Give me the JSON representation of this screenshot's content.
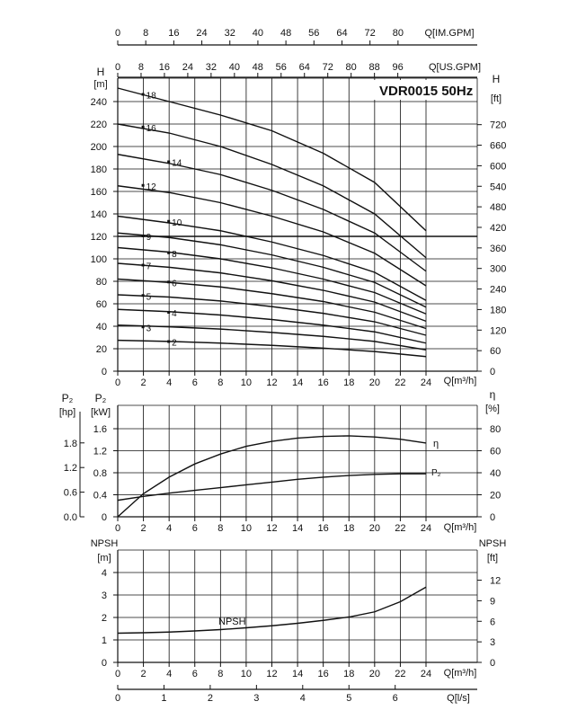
{
  "title": "VDR0015 50Hz",
  "title_color": "#b5602a",
  "top_axes": {
    "im_gpm": {
      "label": "Q[IM.GPM]",
      "ticks": [
        "0",
        "8",
        "16",
        "24",
        "32",
        "40",
        "48",
        "56",
        "64",
        "72",
        "80"
      ]
    },
    "us_gpm": {
      "label": "Q[US.GPM]",
      "ticks": [
        "0",
        "8",
        "16",
        "24",
        "32",
        "40",
        "48",
        "56",
        "64",
        "72",
        "80",
        "88",
        "96"
      ]
    }
  },
  "bottom_axis": {
    "label": "Q[l/s]",
    "ticks": [
      "0",
      "1",
      "2",
      "3",
      "4",
      "5",
      "6"
    ]
  },
  "chart_data": [
    {
      "name": "head",
      "type": "line",
      "xlabel": "Q[m³/h]",
      "xlim": [
        0,
        24
      ],
      "x_ticks": [
        "0",
        "2",
        "4",
        "6",
        "8",
        "10",
        "12",
        "14",
        "16",
        "18",
        "20",
        "22",
        "24"
      ],
      "ylabel_left_symbol": "H",
      "ylabel_left_unit": "[m]",
      "ylim": [
        0,
        250
      ],
      "y_ticks": [
        "0",
        "20",
        "40",
        "60",
        "80",
        "100",
        "120",
        "140",
        "160",
        "180",
        "200",
        "220",
        "240"
      ],
      "ylabel_right_symbol": "H",
      "ylabel_right_unit": "[ft]",
      "y_ticks_right": [
        "0",
        "60",
        "120",
        "180",
        "240",
        "300",
        "360",
        "420",
        "480",
        "540",
        "600",
        "660",
        "720"
      ],
      "series": [
        {
          "name": "2",
          "x": [
            0,
            4,
            8,
            12,
            16,
            20,
            24
          ],
          "y": [
            27.5,
            26.5,
            25,
            23,
            20.5,
            17.5,
            13
          ]
        },
        {
          "name": "3",
          "x": [
            0,
            4,
            8,
            12,
            16,
            20,
            24
          ],
          "y": [
            41,
            39.5,
            37.5,
            34.5,
            31,
            26.5,
            19
          ]
        },
        {
          "name": "4",
          "x": [
            0,
            4,
            8,
            12,
            16,
            20,
            24
          ],
          "y": [
            55,
            53,
            50,
            46,
            41,
            35,
            25
          ]
        },
        {
          "name": "5",
          "x": [
            0,
            4,
            8,
            12,
            16,
            20,
            24
          ],
          "y": [
            68,
            66,
            62.5,
            57.5,
            51.5,
            44,
            32
          ]
        },
        {
          "name": "6",
          "x": [
            0,
            4,
            8,
            12,
            16,
            20,
            24
          ],
          "y": [
            82,
            79,
            75,
            69,
            62,
            52.5,
            38
          ]
        },
        {
          "name": "7",
          "x": [
            0,
            4,
            8,
            12,
            16,
            20,
            24
          ],
          "y": [
            96,
            92.5,
            87.5,
            80.5,
            72,
            61.5,
            44.5
          ]
        },
        {
          "name": "8",
          "x": [
            0,
            4,
            8,
            12,
            16,
            20,
            24
          ],
          "y": [
            110,
            106,
            100,
            92,
            82,
            70,
            51
          ]
        },
        {
          "name": "9",
          "x": [
            0,
            4,
            8,
            12,
            16,
            20,
            24
          ],
          "y": [
            123,
            119,
            112.5,
            103.5,
            92.5,
            79,
            57
          ]
        },
        {
          "name": "10",
          "x": [
            0,
            4,
            8,
            12,
            16,
            20,
            24
          ],
          "y": [
            138,
            132,
            125,
            115,
            103,
            88,
            63
          ]
        },
        {
          "name": "12",
          "x": [
            0,
            4,
            8,
            12,
            16,
            20,
            24
          ],
          "y": [
            165,
            159,
            150,
            138,
            124,
            105,
            76
          ]
        },
        {
          "name": "14",
          "x": [
            0,
            4,
            8,
            12,
            16,
            20,
            24
          ],
          "y": [
            193,
            185,
            175,
            161,
            144,
            123,
            89
          ]
        },
        {
          "name": "16",
          "x": [
            0,
            4,
            8,
            12,
            16,
            20,
            24
          ],
          "y": [
            220,
            212,
            200,
            184,
            165,
            140,
            101
          ]
        },
        {
          "name": "18",
          "x": [
            0,
            4,
            8,
            12,
            16,
            20,
            24
          ],
          "y": [
            252,
            240,
            228,
            214,
            194,
            168,
            125
          ]
        }
      ],
      "annotations": [
        {
          "text": "18",
          "x": 2,
          "y": 246
        },
        {
          "text": "16",
          "x": 2,
          "y": 217
        },
        {
          "text": "14",
          "x": 4,
          "y": 186
        },
        {
          "text": "12",
          "x": 2,
          "y": 165
        },
        {
          "text": "10",
          "x": 4,
          "y": 133
        },
        {
          "text": "9",
          "x": 2,
          "y": 120
        },
        {
          "text": "8",
          "x": 4,
          "y": 105
        },
        {
          "text": "7",
          "x": 2,
          "y": 94
        },
        {
          "text": "6",
          "x": 4,
          "y": 79
        },
        {
          "text": "5",
          "x": 2,
          "y": 67
        },
        {
          "text": "4",
          "x": 4,
          "y": 52
        },
        {
          "text": "3",
          "x": 2,
          "y": 39
        },
        {
          "text": "2",
          "x": 4,
          "y": 26
        }
      ],
      "grid": true
    },
    {
      "name": "power-efficiency",
      "type": "line",
      "xlabel": "Q[m³/h]",
      "xlim": [
        0,
        24
      ],
      "x_ticks": [
        "0",
        "2",
        "4",
        "6",
        "8",
        "10",
        "12",
        "14",
        "16",
        "18",
        "20",
        "22",
        "24"
      ],
      "ylabel_hp_symbol": "P₂",
      "ylabel_hp_unit": "[hp]",
      "y_ticks_hp": [
        "0.0",
        "0.6",
        "1.2",
        "1.8"
      ],
      "ylabel_kw_symbol": "P₂",
      "ylabel_kw_unit": "[kW]",
      "ylim": [
        0,
        1.8
      ],
      "y_ticks": [
        "0",
        "0.4",
        "0.8",
        "1.2",
        "1.6"
      ],
      "ylabel_right_symbol": "η",
      "ylabel_right_unit": "[%]",
      "y_ticks_right": [
        "0",
        "20",
        "40",
        "60",
        "80"
      ],
      "series": [
        {
          "name": "η",
          "axis": "right",
          "x": [
            0,
            2,
            4,
            6,
            8,
            10,
            12,
            14,
            16,
            18,
            20,
            22,
            24
          ],
          "y": [
            0,
            21,
            36,
            48,
            57,
            64,
            68.5,
            71.5,
            73,
            73.5,
            72.5,
            70.5,
            67
          ]
        },
        {
          "name": "P₂",
          "axis": "kw",
          "x": [
            0,
            2,
            4,
            6,
            8,
            10,
            12,
            14,
            16,
            18,
            20,
            22,
            24
          ],
          "y": [
            0.3,
            0.37,
            0.43,
            0.48,
            0.53,
            0.58,
            0.63,
            0.68,
            0.72,
            0.75,
            0.77,
            0.78,
            0.78
          ]
        }
      ],
      "series_labels": [
        "η",
        "P₂"
      ],
      "grid": true
    },
    {
      "name": "npsh",
      "type": "line",
      "xlabel": "Q[m³/h]",
      "xlim": [
        0,
        24
      ],
      "x_ticks": [
        "0",
        "2",
        "4",
        "6",
        "8",
        "10",
        "12",
        "14",
        "16",
        "18",
        "20",
        "22",
        "24"
      ],
      "ylabel_left_symbol": "NPSH",
      "ylabel_left_unit": "[m]",
      "ylim": [
        0,
        4.5
      ],
      "y_ticks": [
        "0",
        "1",
        "2",
        "3",
        "4"
      ],
      "ylabel_right_symbol": "NPSH",
      "ylabel_right_unit": "[ft]",
      "y_ticks_right": [
        "0",
        "3",
        "6",
        "9",
        "12"
      ],
      "series": [
        {
          "name": "NPSH",
          "x": [
            0,
            2,
            4,
            6,
            8,
            10,
            12,
            14,
            16,
            18,
            20,
            22,
            24
          ],
          "y": [
            1.3,
            1.32,
            1.35,
            1.4,
            1.46,
            1.54,
            1.63,
            1.74,
            1.87,
            2.02,
            2.25,
            2.7,
            3.35
          ]
        }
      ],
      "series_label": "NPSH",
      "grid": true
    }
  ]
}
